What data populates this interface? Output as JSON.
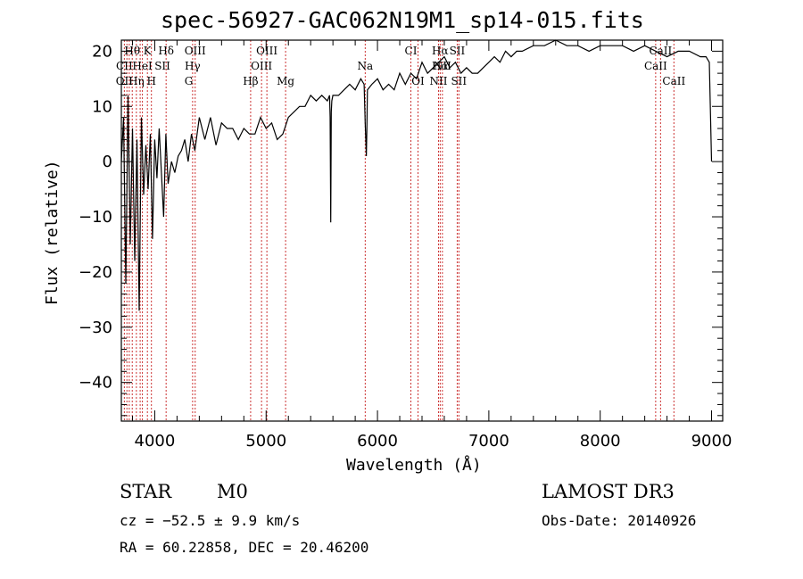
{
  "chart_data": {
    "type": "line",
    "title": "spec-56927-GAC062N19M1_sp14-015.fits",
    "xlabel": "Wavelength (Å)",
    "ylabel": "Flux (relative)",
    "xlim": [
      3700,
      9100
    ],
    "ylim": [
      -47,
      22
    ],
    "xticks": [
      4000,
      5000,
      6000,
      7000,
      8000,
      9000
    ],
    "yticks": [
      20,
      10,
      0,
      -10,
      -20,
      -30,
      -40
    ],
    "xtick_labels": [
      "4000",
      "5000",
      "6000",
      "7000",
      "8000",
      "9000"
    ],
    "ytick_labels": [
      "20",
      "10",
      "0",
      "−10",
      "−20",
      "−30",
      "−40"
    ],
    "series": [
      {
        "name": "flux",
        "x": [
          3700,
          3720,
          3740,
          3760,
          3780,
          3800,
          3820,
          3840,
          3860,
          3880,
          3900,
          3920,
          3940,
          3960,
          3980,
          4000,
          4020,
          4040,
          4060,
          4080,
          4100,
          4120,
          4150,
          4180,
          4210,
          4240,
          4270,
          4300,
          4330,
          4360,
          4400,
          4450,
          4500,
          4550,
          4600,
          4650,
          4700,
          4750,
          4800,
          4850,
          4900,
          4950,
          5000,
          5050,
          5100,
          5150,
          5200,
          5250,
          5300,
          5350,
          5400,
          5450,
          5500,
          5550,
          5570,
          5575,
          5580,
          5585,
          5590,
          5600,
          5650,
          5700,
          5750,
          5800,
          5850,
          5880,
          5890,
          5895,
          5900,
          5905,
          5910,
          5950,
          6000,
          6050,
          6100,
          6150,
          6200,
          6250,
          6300,
          6350,
          6400,
          6450,
          6500,
          6550,
          6600,
          6650,
          6700,
          6750,
          6800,
          6850,
          6900,
          6950,
          7000,
          7050,
          7100,
          7150,
          7200,
          7250,
          7300,
          7400,
          7500,
          7600,
          7700,
          7800,
          7900,
          8000,
          8100,
          8200,
          8300,
          8400,
          8500,
          8600,
          8700,
          8800,
          8900,
          8950,
          8980,
          9000
        ],
        "y": [
          0,
          8,
          -22,
          12,
          -15,
          6,
          -18,
          4,
          -27,
          8,
          -6,
          3,
          -5,
          5,
          -14,
          4,
          -3,
          6,
          -2,
          -10,
          5,
          -4,
          0,
          -2,
          1,
          2,
          4,
          0,
          5,
          2,
          8,
          4,
          8,
          3,
          7,
          6,
          6,
          4,
          6,
          5,
          5,
          8,
          6,
          7,
          4,
          5,
          8,
          9,
          10,
          10,
          12,
          11,
          12,
          11,
          12,
          8,
          -11,
          9,
          11,
          12,
          12,
          13,
          14,
          13,
          15,
          14,
          7,
          4,
          1,
          6,
          13,
          14,
          15,
          13,
          14,
          13,
          16,
          14,
          16,
          15,
          18,
          16,
          17,
          18,
          19,
          17,
          18,
          16,
          17,
          16,
          16,
          17,
          18,
          19,
          18,
          20,
          19,
          20,
          20,
          21,
          21,
          22,
          21,
          21,
          20,
          21,
          21,
          21,
          20,
          21,
          20,
          19,
          20,
          20,
          19,
          19,
          18,
          0
        ]
      }
    ],
    "line_labels_top": [
      "Hθ",
      "K",
      "Hδ",
      "OIII",
      "OIII",
      "CI",
      "Hα",
      "SII",
      "CaII"
    ],
    "line_labels_mid": [
      "CII",
      "HeI",
      "SII",
      "Hγ",
      "OIII",
      "Na",
      "NII",
      "Hα",
      "CaII"
    ],
    "line_labels_low": [
      "OII",
      "Hη",
      "H",
      "G",
      "Hβ",
      "Mg",
      "OI",
      "NII",
      "SII",
      "CaII"
    ]
  },
  "info": {
    "object_type": "STAR",
    "subclass": "M0",
    "survey": "LAMOST DR3",
    "cz": "cz = −52.5 ± 9.9 km/s",
    "obs_date": "Obs-Date: 20140926",
    "radec": "RA =  60.22858, DEC =  20.46200"
  }
}
